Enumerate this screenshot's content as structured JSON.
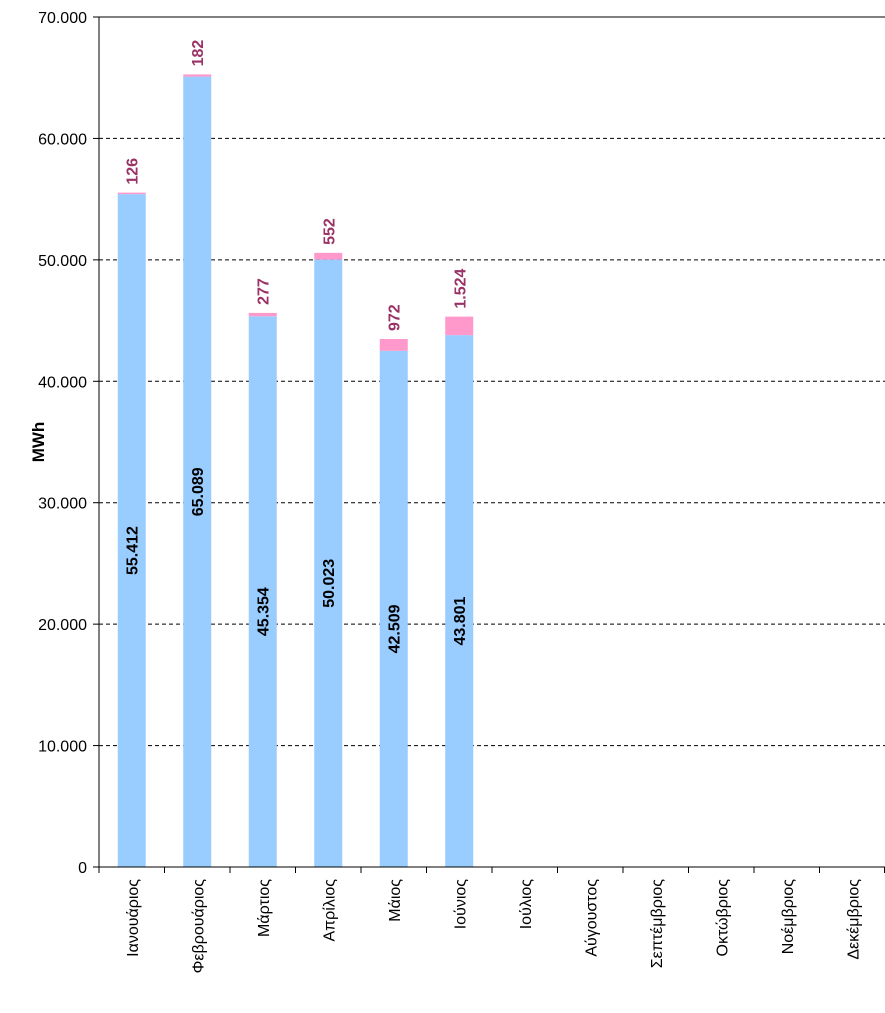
{
  "chart_data": {
    "type": "bar",
    "stacked": true,
    "categories": [
      "Ιανουάριος",
      "Φεβρουάριος",
      "Μάρτιος",
      "Απρίλιος",
      "Μάιος",
      "Ιούνιος",
      "Ιούλιος",
      "Αύγουστος",
      "Σεπτέμβριος",
      "Οκτώβριος",
      "Νοέμβριος",
      "Δεκέμβριος"
    ],
    "series": [
      {
        "color": "#99ccff",
        "values": [
          55412,
          65089,
          45354,
          50023,
          42509,
          43801,
          null,
          null,
          null,
          null,
          null,
          null
        ],
        "labels": [
          "55.412",
          "65.089",
          "45.354",
          "50.023",
          "42.509",
          "43.801",
          "",
          "",
          "",
          "",
          "",
          ""
        ]
      },
      {
        "color": "#ff99cc",
        "values": [
          126,
          182,
          277,
          552,
          972,
          1524,
          null,
          null,
          null,
          null,
          null,
          null
        ],
        "labels": [
          "126",
          "182",
          "277",
          "552",
          "972",
          "1.524",
          "",
          "",
          "",
          "",
          "",
          ""
        ]
      }
    ],
    "ylabel": "MWh",
    "ylim": [
      0,
      70000
    ],
    "yticks": [
      0,
      10000,
      20000,
      30000,
      40000,
      50000,
      60000,
      70000
    ],
    "ytick_labels": [
      "0",
      "10.000",
      "20.000",
      "30.000",
      "40.000",
      "50.000",
      "60.000",
      "70.000"
    ],
    "grid": "horizontal-dashed",
    "legend": "none"
  }
}
